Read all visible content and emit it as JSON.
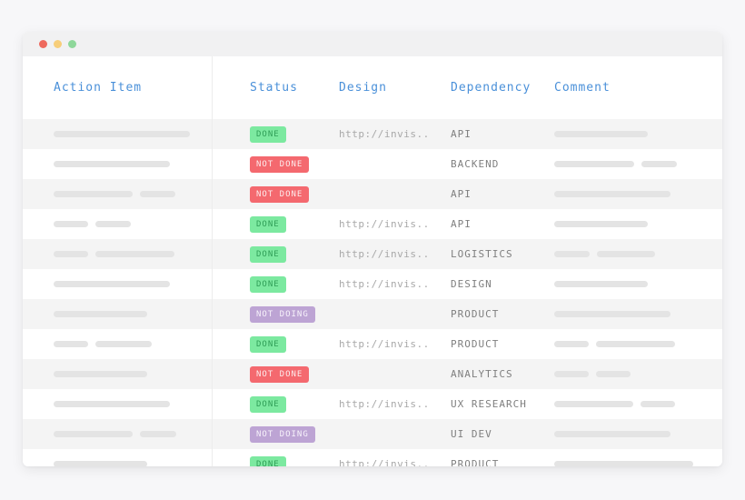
{
  "page": {
    "background": "#f7f7f9"
  },
  "window": {
    "traffic_lights": [
      {
        "name": "close",
        "color": "#ee6a5e"
      },
      {
        "name": "minimize",
        "color": "#f7ce7a"
      },
      {
        "name": "zoom",
        "color": "#8ed79a"
      }
    ]
  },
  "table": {
    "header": {
      "action_item": "Action Item",
      "status": "Status",
      "design": "Design",
      "dependency": "Dependency",
      "comment": "Comment"
    },
    "header_color": "#4a90d9",
    "statuses": {
      "DONE": {
        "bg": "#7ce9a0",
        "text": "#2f9e57"
      },
      "NOT_DONE": {
        "bg": "#f4696f",
        "text": "#fdecec"
      },
      "NOT_DOING": {
        "bg": "#bda4d4",
        "text": "#f7f2fb"
      }
    },
    "rows": [
      {
        "action_bars": [
          150
        ],
        "status": "DONE",
        "design": "http://invis..",
        "dependency": "API",
        "comment_bars": [
          103
        ]
      },
      {
        "action_bars": [
          128
        ],
        "status": "NOT DONE",
        "design": "",
        "dependency": "BACKEND",
        "comment_bars": [
          88,
          39
        ]
      },
      {
        "action_bars": [
          87,
          39
        ],
        "status": "NOT DONE",
        "design": "",
        "dependency": "API",
        "comment_bars": [
          128
        ]
      },
      {
        "action_bars": [
          38,
          39
        ],
        "status": "DONE",
        "design": "http://invis..",
        "dependency": "API",
        "comment_bars": [
          103
        ]
      },
      {
        "action_bars": [
          38,
          87
        ],
        "status": "DONE",
        "design": "http://invis..",
        "dependency": "LOGISTICS",
        "comment_bars": [
          39,
          64
        ]
      },
      {
        "action_bars": [
          128
        ],
        "status": "DONE",
        "design": "http://invis..",
        "dependency": "DESIGN",
        "comment_bars": [
          103
        ]
      },
      {
        "action_bars": [
          103
        ],
        "status": "NOT DOING",
        "design": "",
        "dependency": "PRODUCT",
        "comment_bars": [
          128
        ]
      },
      {
        "action_bars": [
          38,
          62
        ],
        "status": "DONE",
        "design": "http://invis..",
        "dependency": "PRODUCT",
        "comment_bars": [
          38,
          87
        ]
      },
      {
        "action_bars": [
          103
        ],
        "status": "NOT DONE",
        "design": "",
        "dependency": "ANALYTICS",
        "comment_bars": [
          38,
          38
        ]
      },
      {
        "action_bars": [
          128
        ],
        "status": "DONE",
        "design": "http://invis..",
        "dependency": "UX RESEARCH",
        "comment_bars": [
          87,
          38
        ]
      },
      {
        "action_bars": [
          87,
          40
        ],
        "status": "NOT DOING",
        "design": "",
        "dependency": "UI DEV",
        "comment_bars": [
          128
        ]
      },
      {
        "action_bars": [
          103
        ],
        "status": "DONE",
        "design": "http://invis..",
        "dependency": "PRODUCT",
        "comment_bars": [
          153
        ]
      }
    ]
  }
}
